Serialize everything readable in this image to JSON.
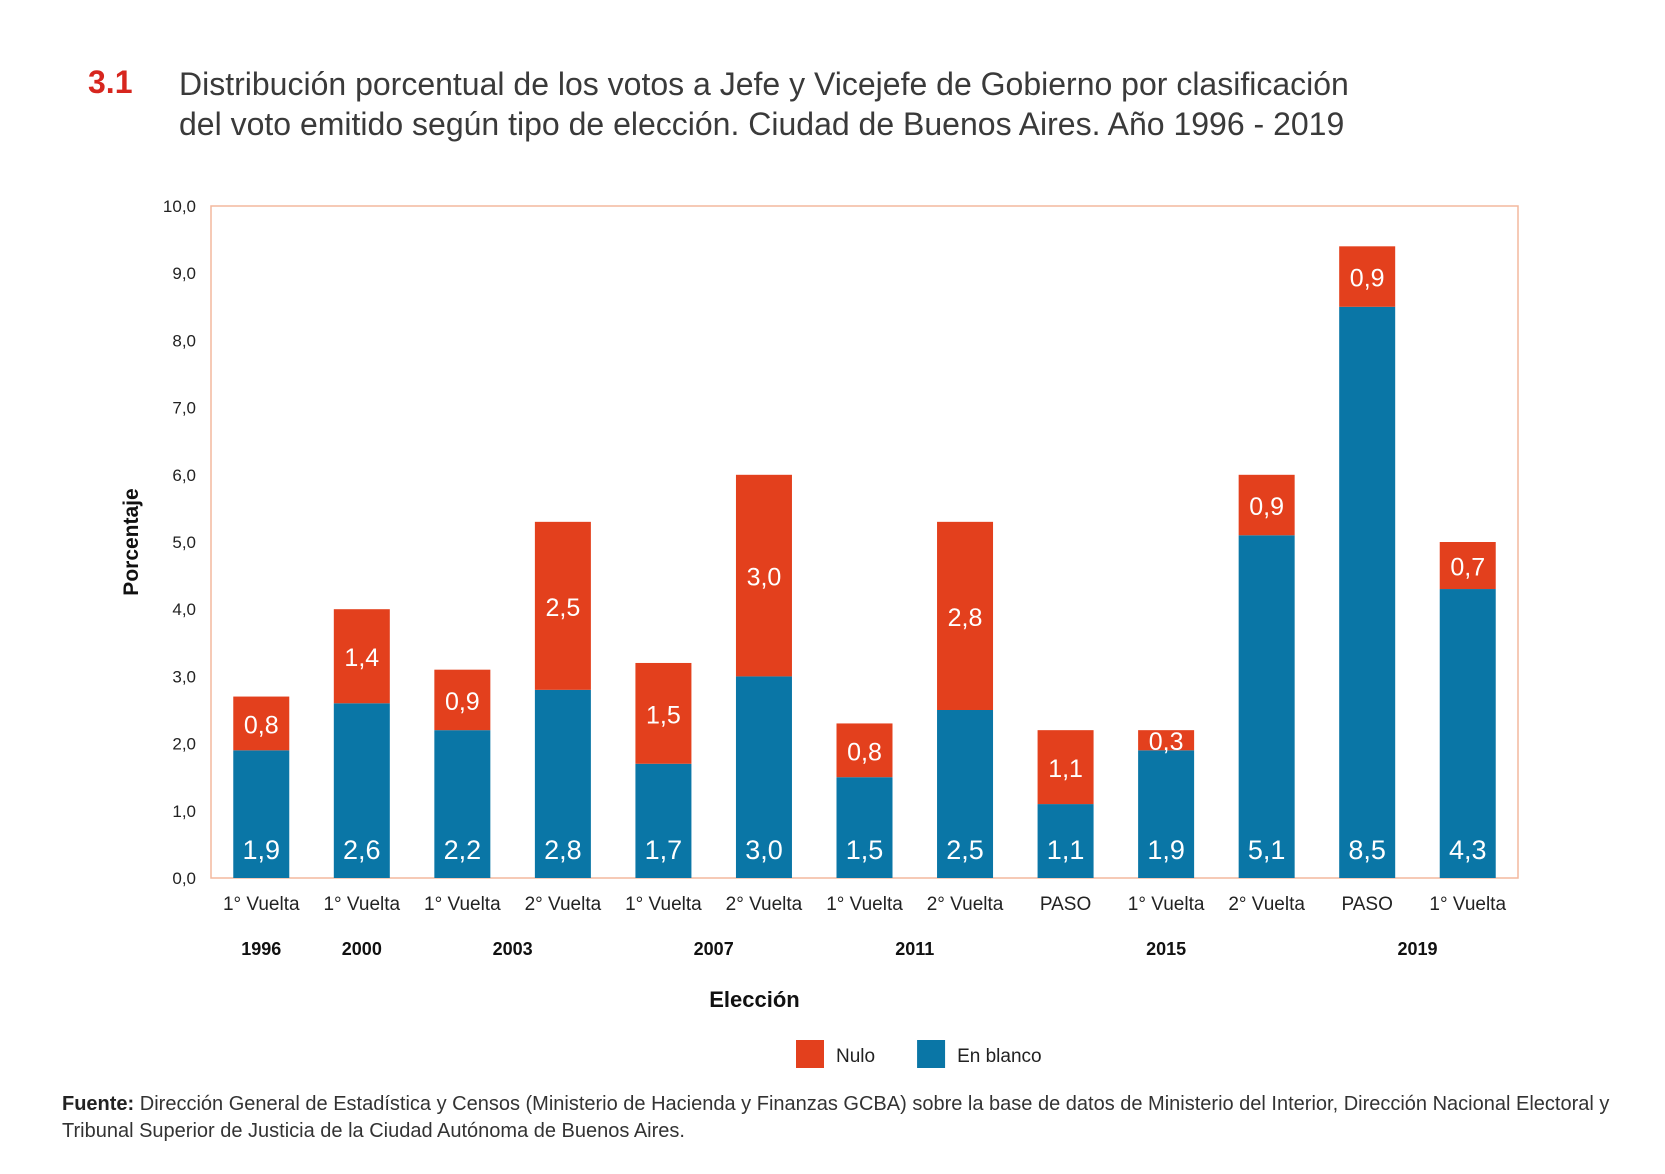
{
  "header": {
    "figure_number": "3.1",
    "title_line1": "Distribución porcentual de los votos a Jefe y Vicejefe de Gobierno por clasificación",
    "title_line2": "del voto emitido según tipo de elección. Ciudad de Buenos Aires. Año 1996 - 2019"
  },
  "colors": {
    "nulo": "#e3401d",
    "en_blanco": "#0a76a6",
    "frame": "#f3b89e",
    "accent": "#d7261e"
  },
  "chart_data": {
    "type": "bar",
    "stacked": true,
    "ylabel": "Porcentaje",
    "xlabel": "Elección",
    "ylim": [
      0,
      10
    ],
    "yticks": [
      "0,0",
      "1,0",
      "2,0",
      "3,0",
      "4,0",
      "5,0",
      "6,0",
      "7,0",
      "8,0",
      "9,0",
      "10,0"
    ],
    "categories": [
      "1° Vuelta",
      "1° Vuelta",
      "1° Vuelta",
      "2° Vuelta",
      "1° Vuelta",
      "2° Vuelta",
      "1° Vuelta",
      "2° Vuelta",
      "PASO",
      "1° Vuelta",
      "2° Vuelta",
      "PASO",
      "1° Vuelta"
    ],
    "year_groups": [
      {
        "label": "1996",
        "start": 0,
        "end": 0
      },
      {
        "label": "2000",
        "start": 1,
        "end": 1
      },
      {
        "label": "2003",
        "start": 2,
        "end": 3
      },
      {
        "label": "2007",
        "start": 4,
        "end": 5
      },
      {
        "label": "2011",
        "start": 6,
        "end": 7
      },
      {
        "label": "2015",
        "start": 8,
        "end": 10
      },
      {
        "label": "2019",
        "start": 11,
        "end": 12
      }
    ],
    "series": [
      {
        "name": "En blanco",
        "values": [
          1.9,
          2.6,
          2.2,
          2.8,
          1.7,
          3.0,
          1.5,
          2.5,
          1.1,
          1.9,
          5.1,
          8.5,
          4.3
        ],
        "labels": [
          "1,9",
          "2,6",
          "2,2",
          "2,8",
          "1,7",
          "3,0",
          "1,5",
          "2,5",
          "1,1",
          "1,9",
          "5,1",
          "8,5",
          "4,3"
        ]
      },
      {
        "name": "Nulo",
        "values": [
          0.8,
          1.4,
          0.9,
          2.5,
          1.5,
          3.0,
          0.8,
          2.8,
          1.1,
          0.3,
          0.9,
          0.9,
          0.7
        ],
        "labels": [
          "0,8",
          "1,4",
          "0,9",
          "2,5",
          "1,5",
          "3,0",
          "0,8",
          "2,8",
          "1,1",
          "0,3",
          "0,9",
          "0,9",
          "0,7"
        ]
      }
    ],
    "legend": [
      {
        "name": "Nulo",
        "color_key": "nulo"
      },
      {
        "name": "En blanco",
        "color_key": "en_blanco"
      }
    ]
  },
  "source": {
    "label": "Fuente:",
    "text": "Dirección General de Estadística y Censos (Ministerio de Hacienda y Finanzas GCBA) sobre la base de datos de Ministerio del Interior, Dirección Nacional Electoral y Tribunal Superior de Justicia de la Ciudad Autónoma de Buenos Aires."
  }
}
